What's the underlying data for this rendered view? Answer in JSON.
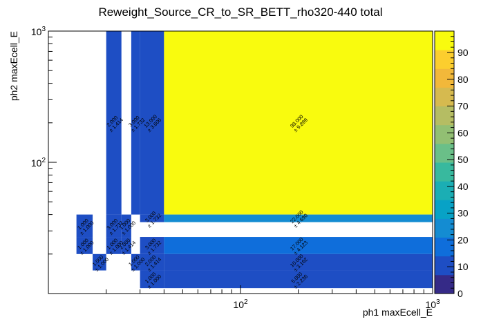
{
  "chart_data": {
    "type": "heatmap",
    "title": "Reweight_Source_CR_to_SR_BETT_rho320-440 total",
    "xlabel": "ph1 maxEcell_E",
    "ylabel": "ph2 maxEcell_E",
    "x_scale": "log",
    "y_scale": "log",
    "xlim": [
      10,
      1000
    ],
    "ylim": [
      10,
      1000
    ],
    "x_edges": [
      14,
      17,
      20,
      24,
      27,
      30,
      40,
      1000
    ],
    "y_edges": [
      11,
      15,
      20,
      27,
      35,
      40,
      1000
    ],
    "x_tick_labels": [
      "10^2",
      "10^3"
    ],
    "y_tick_labels": [
      "10^2",
      "10^3"
    ],
    "cells": [
      {
        "x": [
          14,
          17
        ],
        "y": [
          27,
          40
        ],
        "value": 1,
        "error": "1.000",
        "label": "1.000"
      },
      {
        "x": [
          14,
          17
        ],
        "y": [
          20,
          27
        ],
        "value": 1,
        "error": "1.000",
        "label": "1.000"
      },
      {
        "x": [
          17,
          20
        ],
        "y": [
          15,
          20
        ],
        "value": 1,
        "error": "1.000",
        "label": "1.000"
      },
      {
        "x": [
          20,
          24
        ],
        "y": [
          27,
          40
        ],
        "value": 3,
        "error": "1.732",
        "label": "3.000"
      },
      {
        "x": [
          20,
          24
        ],
        "y": [
          20,
          27
        ],
        "value": 1,
        "error": "1.000",
        "label": "1.000"
      },
      {
        "x": [
          20,
          24
        ],
        "y": [
          40,
          1000
        ],
        "value": 2,
        "error": "1.414",
        "label": "2.000"
      },
      {
        "x": [
          24,
          27
        ],
        "y": [
          27,
          40
        ],
        "value": 1,
        "error": "1.000",
        "label": "1.000"
      },
      {
        "x": [
          24,
          27
        ],
        "y": [
          20,
          27
        ],
        "value": 2,
        "error": "1.414",
        "label": "2.000"
      },
      {
        "x": [
          27,
          30
        ],
        "y": [
          40,
          1000
        ],
        "value": 3,
        "error": "1.732",
        "label": "3.000"
      },
      {
        "x": [
          27,
          30
        ],
        "y": [
          15,
          20
        ],
        "value": 1,
        "error": "1.000",
        "label": "1.000"
      },
      {
        "x": [
          30,
          40
        ],
        "y": [
          40,
          1000
        ],
        "value": 13,
        "error": "3.606",
        "label": "13.000"
      },
      {
        "x": [
          30,
          40
        ],
        "y": [
          35,
          40
        ],
        "value": 3,
        "error": "1.732",
        "label": "3.000"
      },
      {
        "x": [
          30,
          40
        ],
        "y": [
          20,
          27
        ],
        "value": 3,
        "error": "1.732",
        "label": "3.000"
      },
      {
        "x": [
          30,
          40
        ],
        "y": [
          15,
          20
        ],
        "value": 2,
        "error": "1.414",
        "label": "2.000"
      },
      {
        "x": [
          30,
          40
        ],
        "y": [
          11,
          15
        ],
        "value": 1,
        "error": "1.000",
        "label": "1.000"
      },
      {
        "x": [
          40,
          1000
        ],
        "y": [
          40,
          1000
        ],
        "value": 98,
        "error": "9.899",
        "label": "98.000"
      },
      {
        "x": [
          40,
          1000
        ],
        "y": [
          35,
          40
        ],
        "value": 22,
        "error": "4.690",
        "label": "22.000"
      },
      {
        "x": [
          40,
          1000
        ],
        "y": [
          20,
          27
        ],
        "value": 17,
        "error": "4.123",
        "label": "17.000"
      },
      {
        "x": [
          40,
          1000
        ],
        "y": [
          15,
          20
        ],
        "value": 10,
        "error": "3.162",
        "label": "10.000"
      },
      {
        "x": [
          40,
          1000
        ],
        "y": [
          11,
          15
        ],
        "value": 5,
        "error": "2.236",
        "label": "5.000"
      }
    ],
    "colorbar": {
      "min": 0,
      "max": 98,
      "ticks": [
        0,
        10,
        20,
        30,
        40,
        50,
        60,
        70,
        80,
        90
      ],
      "tick_labels": [
        "0",
        "10",
        "20",
        "30",
        "40",
        "50",
        "60",
        "70",
        "80",
        "90"
      ]
    },
    "grid": false,
    "legend": "none"
  },
  "colors": {
    "palette": [
      "#352a87",
      "#1e4ec4",
      "#0f6edb",
      "#148cd2",
      "#08a2c6",
      "#1baeb4",
      "#38b99e",
      "#6abf88",
      "#92bf73",
      "#b5bd63",
      "#d6ba4f",
      "#f2b83a",
      "#fcce2e",
      "#f9fb0e"
    ]
  }
}
